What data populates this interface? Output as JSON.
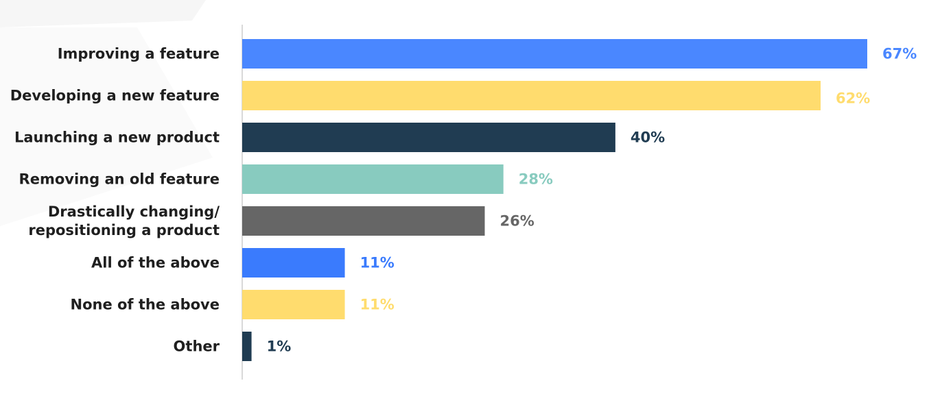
{
  "chart_data": {
    "type": "bar",
    "orientation": "horizontal",
    "categories": [
      [
        "Improving a feature"
      ],
      [
        "Developing a new feature"
      ],
      [
        "Launching a new product"
      ],
      [
        "Removing an old feature"
      ],
      [
        "Drastically changing/",
        "repositioning a product"
      ],
      [
        "All of the above"
      ],
      [
        "None of the above"
      ],
      [
        "Other"
      ]
    ],
    "values": [
      67,
      62,
      40,
      28,
      26,
      11,
      11,
      1
    ],
    "value_labels": [
      "67%",
      "62%",
      "40%",
      "28%",
      "26%",
      "11%",
      "11%",
      "1%"
    ],
    "colors": [
      "#4a87ff",
      "#ffdc6e",
      "#203c52",
      "#88cbbf",
      "#666666",
      "#3a7bfd",
      "#ffdc6e",
      "#203c52"
    ],
    "title": "",
    "xlabel": "",
    "ylabel": "",
    "xlim": [
      0,
      67
    ],
    "grid": false,
    "legend": "none"
  },
  "colors": {
    "axis_line": "#d9d9d9",
    "category_text": "#1f1f1f",
    "background_shape": "#f6f6f6"
  }
}
